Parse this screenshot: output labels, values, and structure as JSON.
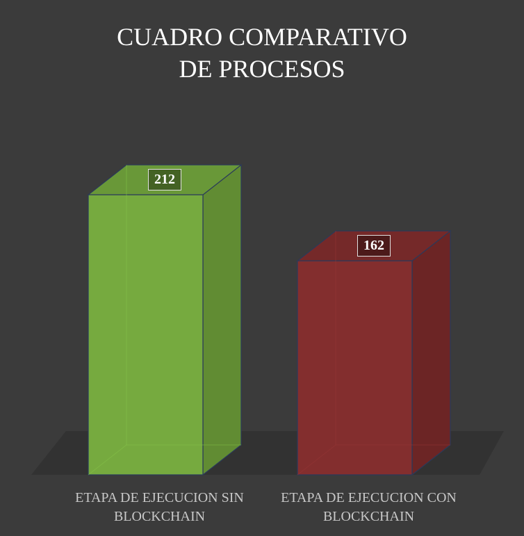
{
  "chart_data": {
    "type": "bar3d",
    "title": "CUADRO COMPARATIVO DE PROCESOS",
    "categories": [
      "ETAPA DE EJECUCION SIN BLOCKCHAIN",
      "ETAPA DE EJECUCION CON BLOCKCHAIN"
    ],
    "values": [
      212,
      162
    ],
    "colors": [
      "#7cb342",
      "#8a3030"
    ]
  }
}
